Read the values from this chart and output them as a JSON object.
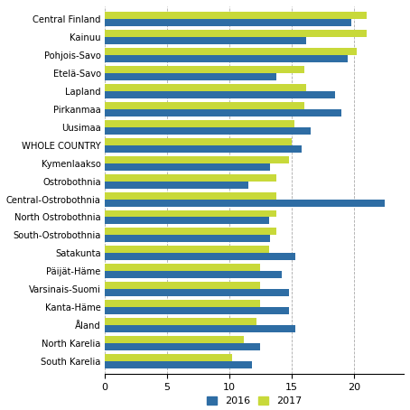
{
  "regions": [
    "Central Finland",
    "Kainuu",
    "Pohjois-Savo",
    "Etelä-Savo",
    "Lapland",
    "Pirkanmaa",
    "Uusimaa",
    "WHOLE COUNTRY",
    "Kymenlaakso",
    "Ostrobothnia",
    "Central-Ostrobothnia",
    "North Ostrobothnia",
    "South-Ostrobothnia",
    "Satakunta",
    "Päijät-Häme",
    "Varsinais-Suomi",
    "Kanta-Häme",
    "Åland",
    "North Karelia",
    "South Karelia"
  ],
  "values_2016": [
    19.8,
    16.2,
    19.5,
    13.8,
    18.5,
    19.0,
    16.5,
    15.8,
    13.3,
    11.5,
    22.5,
    13.2,
    13.3,
    15.3,
    14.2,
    14.8,
    14.8,
    15.3,
    12.5,
    11.8
  ],
  "values_2017": [
    21.0,
    21.0,
    20.2,
    16.0,
    16.2,
    16.0,
    15.2,
    15.0,
    14.8,
    13.8,
    13.8,
    13.8,
    13.8,
    13.2,
    12.5,
    12.5,
    12.5,
    12.2,
    11.2,
    10.2
  ],
  "color_2016": "#2E6DA4",
  "color_2017": "#C8D93A",
  "xticks": [
    0,
    5,
    10,
    15,
    20
  ],
  "xlim": [
    0,
    24
  ],
  "legend_2016": "2016",
  "legend_2017": "2017",
  "bar_height": 0.4,
  "figsize": [
    4.54,
    4.54
  ],
  "dpi": 100
}
